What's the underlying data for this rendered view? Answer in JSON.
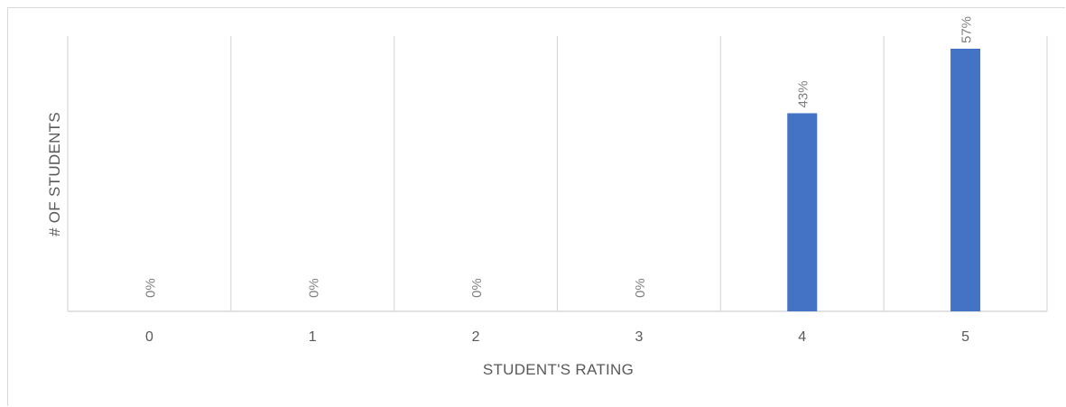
{
  "chart_data": {
    "type": "bar",
    "categories": [
      "0",
      "1",
      "2",
      "3",
      "4",
      "5"
    ],
    "values": [
      0,
      0,
      0,
      0,
      43,
      57
    ],
    "data_labels": [
      "0%",
      "0%",
      "0%",
      "0%",
      "43%",
      "57%"
    ],
    "xlabel": "STUDENT'S RATING",
    "ylabel": "# OF STUDENTS",
    "ylim": [
      0,
      57
    ],
    "grid": "vertical",
    "legend": "none",
    "bar_color": "#4472C4",
    "gridline_color": "#d9d9d9"
  }
}
